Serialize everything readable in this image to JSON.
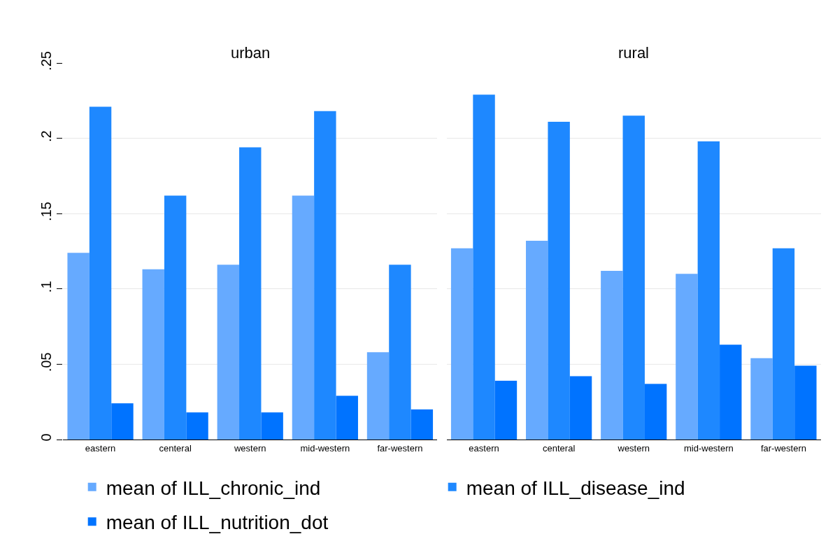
{
  "chart_data": [
    {
      "type": "bar",
      "title": "urban",
      "categories": [
        "eastern",
        "centeral",
        "western",
        "mid-western",
        "far-western"
      ],
      "series": [
        {
          "name": "mean of ILL_chronic_ind",
          "color": "#66aaff",
          "values": [
            0.124,
            0.113,
            0.116,
            0.162,
            0.058
          ]
        },
        {
          "name": "mean of ILL_disease_ind",
          "color": "#1e88ff",
          "values": [
            0.221,
            0.162,
            0.194,
            0.218,
            0.116
          ]
        },
        {
          "name": "mean of ILL_nutrition_dot",
          "color": "#0073ff",
          "values": [
            0.024,
            0.018,
            0.018,
            0.029,
            0.02
          ]
        }
      ],
      "ylim": [
        0,
        0.25
      ],
      "yticks": [
        0,
        {
          "value": 0.05,
          "label": ".05"
        },
        {
          "value": 0.1,
          "label": ".1"
        },
        {
          "value": 0.15,
          "label": ".15"
        },
        {
          "value": 0.2,
          "label": ".2"
        },
        {
          "value": 0.25,
          "label": ".25"
        }
      ],
      "grid": "y",
      "legend": "bottom"
    },
    {
      "type": "bar",
      "title": "rural",
      "categories": [
        "eastern",
        "centeral",
        "western",
        "mid-western",
        "far-western"
      ],
      "series": [
        {
          "color": "#66aaff",
          "values": [
            0.127,
            0.132,
            0.112,
            0.11,
            0.054
          ]
        },
        {
          "color": "#1e88ff",
          "values": [
            0.229,
            0.211,
            0.215,
            0.198,
            0.127
          ]
        },
        {
          "color": "#0073ff",
          "values": [
            0.039,
            0.042,
            0.037,
            0.063,
            0.049
          ]
        }
      ],
      "ylim": [
        0,
        0.25
      ],
      "yticks": [
        0,
        0.05,
        0.1,
        0.15,
        0.2,
        0.25
      ],
      "grid": "y",
      "tick_labels": "x"
    }
  ]
}
